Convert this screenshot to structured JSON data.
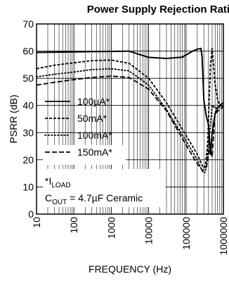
{
  "chart_data": {
    "type": "line",
    "title": "Power Supply Rejection Ratio",
    "xlabel": "FREQUENCY (Hz)",
    "ylabel": "PSRR (dB)",
    "xscale": "log",
    "xlim": [
      10,
      1000000
    ],
    "ylim": [
      0,
      70
    ],
    "grid": true,
    "legend_position": "left-middle",
    "xticks": [
      {
        "value": 10,
        "label": "10"
      },
      {
        "value": 100,
        "label": "100"
      },
      {
        "value": 1000,
        "label": "1000"
      },
      {
        "value": 10000,
        "label": "10000"
      },
      {
        "value": 100000,
        "label": "100000"
      },
      {
        "value": 1000000,
        "label": "1000000"
      }
    ],
    "yticks": [
      {
        "value": 0,
        "label": "0"
      },
      {
        "value": 10,
        "label": "10"
      },
      {
        "value": 20,
        "label": "20"
      },
      {
        "value": 30,
        "label": "30"
      },
      {
        "value": 40,
        "label": "40"
      },
      {
        "value": 50,
        "label": "50"
      },
      {
        "value": 60,
        "label": "60"
      },
      {
        "value": 70,
        "label": "70"
      }
    ],
    "series": [
      {
        "name": "100µA*",
        "dash": "solid",
        "x": [
          10,
          100,
          1000,
          3000,
          5000,
          10000,
          30000,
          80000,
          150000,
          200000,
          250000,
          270000,
          300000,
          350000,
          400000,
          450000,
          500000,
          600000,
          700000,
          800000,
          1000000
        ],
        "y": [
          59.5,
          59.7,
          59.9,
          60.0,
          59.0,
          57.7,
          57.3,
          57.8,
          60.0,
          60.7,
          61.0,
          58.0,
          42.0,
          36.0,
          33.0,
          22.0,
          30.0,
          37.0,
          39.0,
          40.0,
          41.0
        ]
      },
      {
        "name": "50mA*",
        "dash": "dash-short",
        "x": [
          10,
          30,
          100,
          300,
          1000,
          3000,
          10000,
          30000,
          100000,
          200000,
          280000,
          300000,
          330000,
          380000,
          450000,
          500000,
          600000,
          700000,
          800000,
          1000000
        ],
        "y": [
          53.5,
          54.8,
          55.7,
          56.5,
          56.7,
          55.5,
          50.0,
          41.0,
          29.0,
          22.0,
          17.5,
          17.0,
          18.0,
          26.0,
          55.0,
          61.0,
          48.0,
          42.0,
          40.0,
          39.5
        ]
      },
      {
        "name": "100mA*",
        "dash": "dot",
        "x": [
          10,
          30,
          100,
          300,
          1000,
          3000,
          10000,
          30000,
          100000,
          200000,
          280000,
          320000,
          350000,
          400000,
          500000,
          600000,
          800000,
          1000000
        ],
        "y": [
          50.5,
          51.5,
          52.3,
          53.2,
          53.5,
          52.7,
          47.5,
          38.5,
          27.0,
          20.0,
          15.5,
          15.3,
          17.0,
          25.0,
          40.0,
          39.0,
          39.5,
          40.0
        ]
      },
      {
        "name": "150mA*",
        "dash": "dash-long",
        "x": [
          10,
          30,
          100,
          300,
          1000,
          3000,
          10000,
          30000,
          100000,
          200000,
          280000,
          320000,
          360000,
          400000,
          450000,
          500000,
          550000,
          600000,
          800000,
          1000000
        ],
        "y": [
          47.5,
          48.5,
          49.5,
          50.3,
          50.8,
          50.3,
          46.0,
          38.0,
          25.5,
          18.5,
          16.0,
          16.5,
          18.0,
          22.0,
          25.0,
          21.0,
          30.0,
          37.0,
          38.5,
          39.5
        ]
      }
    ],
    "annotation": {
      "line1": {
        "main": "*I",
        "sub": "LOAD"
      },
      "line2": {
        "main": "C",
        "sub": "OUT",
        "rest": " = 4.7µF Ceramic"
      }
    }
  }
}
